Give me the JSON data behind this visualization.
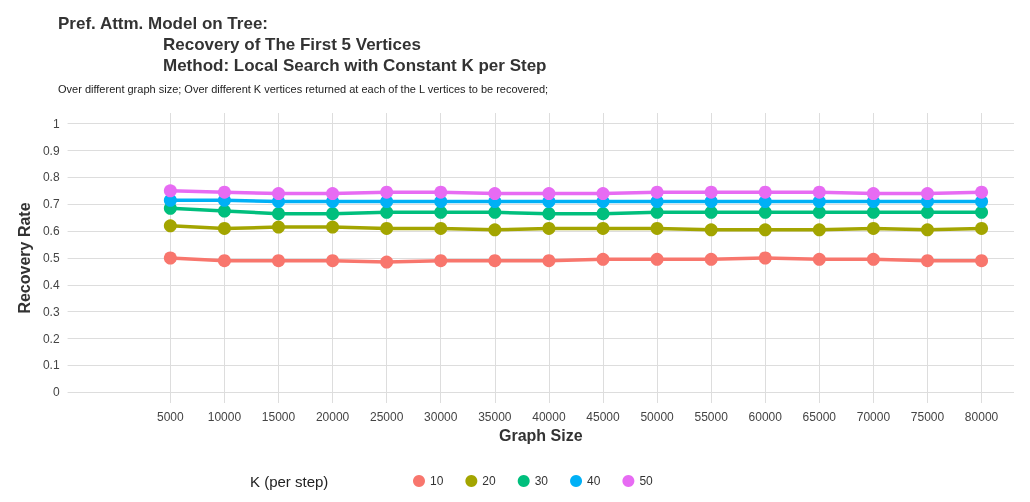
{
  "chart_data": {
    "type": "line",
    "title": "Pref. Attm. Model on Tree:\nRecovery of The First 5 Vertices\nMethod: Local Search with Constant K per Step",
    "subtitle": "Over different graph size; Over different K vertices returned at each of the L vertices to be recovered;",
    "xlabel": "Graph Size",
    "ylabel": "Recovery Rate",
    "legend_title": "K (per step)",
    "legend": "bottom",
    "grid": true,
    "marker": "circle",
    "line_style": "solid",
    "x": [
      5000,
      10000,
      15000,
      20000,
      25000,
      30000,
      35000,
      40000,
      45000,
      50000,
      55000,
      60000,
      65000,
      70000,
      75000,
      80000
    ],
    "xlim": [
      -4500,
      83000
    ],
    "xticks": [
      5000,
      10000,
      15000,
      20000,
      25000,
      30000,
      35000,
      40000,
      45000,
      50000,
      55000,
      60000,
      65000,
      70000,
      75000,
      80000
    ],
    "ylim": [
      -0.04,
      1.04
    ],
    "yticks": [
      0,
      0.1,
      0.2,
      0.3,
      0.4,
      0.5,
      0.6,
      0.7,
      0.8,
      0.9,
      1
    ],
    "series": [
      {
        "name": "10",
        "color": "#f8766d",
        "values": [
          0.5,
          0.49,
          0.49,
          0.49,
          0.485,
          0.49,
          0.49,
          0.49,
          0.495,
          0.495,
          0.495,
          0.5,
          0.495,
          0.495,
          0.49,
          0.49
        ]
      },
      {
        "name": "20",
        "color": "#a3a500",
        "values": [
          0.62,
          0.61,
          0.615,
          0.615,
          0.61,
          0.61,
          0.605,
          0.61,
          0.61,
          0.61,
          0.605,
          0.605,
          0.605,
          0.61,
          0.605,
          0.61
        ]
      },
      {
        "name": "30",
        "color": "#00bf7d",
        "values": [
          0.685,
          0.675,
          0.665,
          0.665,
          0.67,
          0.67,
          0.67,
          0.665,
          0.665,
          0.67,
          0.67,
          0.67,
          0.67,
          0.67,
          0.67,
          0.67
        ]
      },
      {
        "name": "40",
        "color": "#00b0f6",
        "values": [
          0.715,
          0.715,
          0.71,
          0.71,
          0.71,
          0.71,
          0.71,
          0.71,
          0.71,
          0.71,
          0.71,
          0.71,
          0.71,
          0.71,
          0.71,
          0.71
        ]
      },
      {
        "name": "50",
        "color": "#e76bf3",
        "values": [
          0.75,
          0.745,
          0.74,
          0.74,
          0.745,
          0.745,
          0.74,
          0.74,
          0.74,
          0.745,
          0.745,
          0.745,
          0.745,
          0.74,
          0.74,
          0.745
        ]
      }
    ]
  }
}
